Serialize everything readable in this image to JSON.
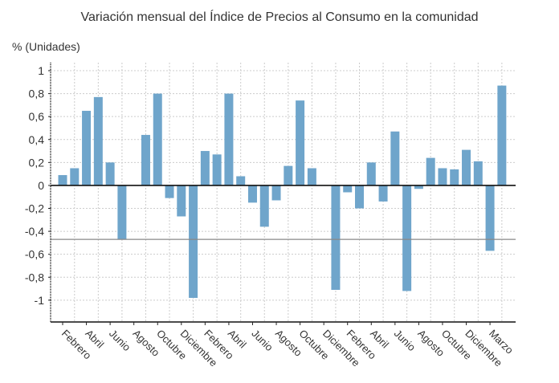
{
  "chart_data": {
    "type": "bar",
    "title": "Variación mensual del Índice de Precios al Consumo en la comunidad",
    "ylabel": "% (Unidades)",
    "xlabel": "",
    "ylim": [
      -1.19,
      1.07
    ],
    "yticks": [
      1,
      0.8,
      0.6,
      0.4,
      0.2,
      0,
      -0.2,
      -0.4,
      -0.6,
      -0.8,
      -1
    ],
    "ytick_labels": [
      "1",
      "0,8",
      "0,6",
      "0,4",
      "0,2",
      "0",
      "-0,2",
      "-0,4",
      "-0,6",
      "-0,8",
      "-1"
    ],
    "xtick_labels": [
      "Febrero",
      "Abril",
      "Junio",
      "Agosto",
      "Octubre",
      "Diciembre",
      "Febrero",
      "Abril",
      "Junio",
      "Agosto",
      "Octubre",
      "Diciembre",
      "Febrero",
      "Abril",
      "Junio",
      "Agosto",
      "Octubre",
      "Diciembre",
      "Marzo"
    ],
    "xtick_every": 2,
    "values": [
      0.09,
      0.15,
      0.65,
      0.77,
      0.2,
      -0.47,
      0,
      0.44,
      0.8,
      -0.11,
      -0.27,
      -0.98,
      0.3,
      0.27,
      0.8,
      0.08,
      -0.15,
      -0.36,
      -0.13,
      0.17,
      0.74,
      0.15,
      0,
      -0.91,
      -0.06,
      -0.2,
      0.2,
      -0.14,
      0.47,
      -0.92,
      -0.03,
      0.24,
      0.15,
      0.14,
      0.31,
      0.21,
      -0.57,
      0.87
    ],
    "reference_line": -0.47,
    "grid": true,
    "bar_color": "#6fa5cb",
    "legend": "none"
  }
}
